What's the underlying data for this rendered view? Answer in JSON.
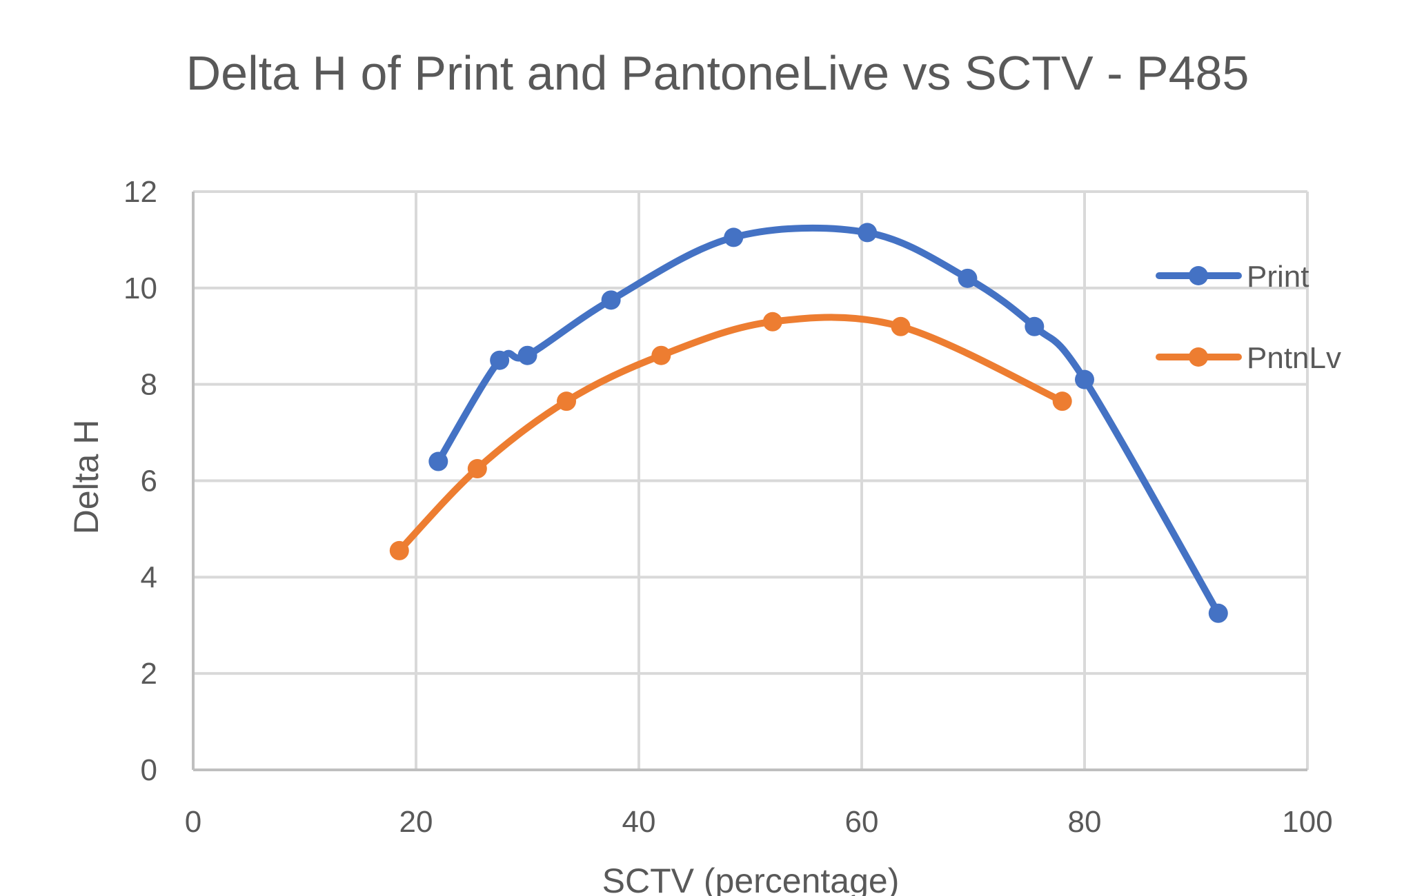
{
  "chart_data": {
    "type": "scatter",
    "title": "Delta H of Print and PantoneLive vs SCTV - P485",
    "xlabel": "SCTV (percentage)",
    "ylabel": "Delta H",
    "xlim": [
      0,
      100
    ],
    "ylim": [
      0,
      12
    ],
    "x_ticks": [
      "0",
      "20",
      "40",
      "60",
      "80",
      "100"
    ],
    "y_ticks": [
      "0",
      "2",
      "4",
      "6",
      "8",
      "10",
      "12"
    ],
    "grid": true,
    "smoothed_lines": true,
    "legend_position": "right",
    "series": [
      {
        "name": "Print",
        "color": "#4472C4",
        "points": [
          {
            "x": 22,
            "y": 6.4
          },
          {
            "x": 27.5,
            "y": 8.5
          },
          {
            "x": 30,
            "y": 8.6
          },
          {
            "x": 37.5,
            "y": 9.75
          },
          {
            "x": 48.5,
            "y": 11.05
          },
          {
            "x": 60.5,
            "y": 11.15
          },
          {
            "x": 69.5,
            "y": 10.2
          },
          {
            "x": 75.5,
            "y": 9.2
          },
          {
            "x": 80,
            "y": 8.1
          },
          {
            "x": 92,
            "y": 3.25
          }
        ]
      },
      {
        "name": "PntnLv",
        "color": "#ED7D31",
        "points": [
          {
            "x": 18.5,
            "y": 4.55
          },
          {
            "x": 25.5,
            "y": 6.25
          },
          {
            "x": 33.5,
            "y": 7.65
          },
          {
            "x": 42,
            "y": 8.6
          },
          {
            "x": 52,
            "y": 9.3
          },
          {
            "x": 63.5,
            "y": 9.2
          },
          {
            "x": 78,
            "y": 7.65
          }
        ]
      }
    ]
  }
}
